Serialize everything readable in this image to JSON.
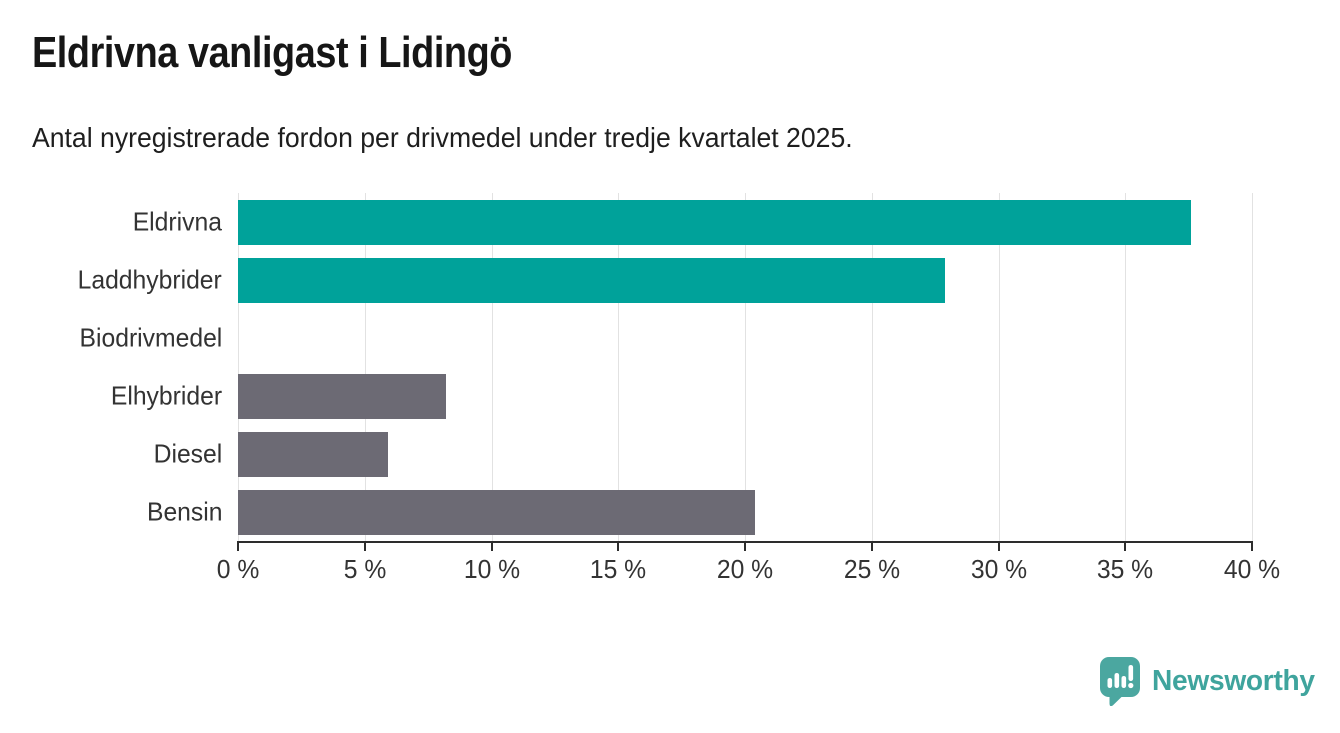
{
  "header": {
    "title": "Eldrivna vanligast i Lidingö",
    "subtitle": "Antal nyregistrerade fordon per drivmedel under tredje kvartalet 2025."
  },
  "chart_data": {
    "type": "bar",
    "orientation": "horizontal",
    "title": "Eldrivna vanligast i Lidingö",
    "subtitle": "Antal nyregistrerade fordon per drivmedel under tredje kvartalet 2025.",
    "categories": [
      "Eldrivna",
      "Laddhybrider",
      "Biodrivmedel",
      "Elhybrider",
      "Diesel",
      "Bensin"
    ],
    "values": [
      37.6,
      27.9,
      0,
      8.2,
      5.9,
      20.4
    ],
    "unit": "%",
    "bar_colors": [
      "#00A29A",
      "#00A29A",
      "#6C6A74",
      "#6C6A74",
      "#6C6A74",
      "#6C6A74"
    ],
    "colors": {
      "highlight": "#00A29A",
      "default": "#6C6A74",
      "gridline": "#e2e2e2",
      "axis": "#2d2d2d"
    },
    "xlim": [
      0,
      40
    ],
    "x_tick_step": 5,
    "x_tick_labels": [
      "0 %",
      "5 %",
      "10 %",
      "15 %",
      "20 %",
      "25 %",
      "30 %",
      "35 %",
      "40 %"
    ],
    "grid": "vertical",
    "legend": "none"
  },
  "footer": {
    "logo_text": "Newsworthy",
    "logo_icon": "newsworthy-chart-bubble-icon",
    "logo_color": "#3FA49D",
    "logo_icon_color": "#4BA7A0"
  }
}
